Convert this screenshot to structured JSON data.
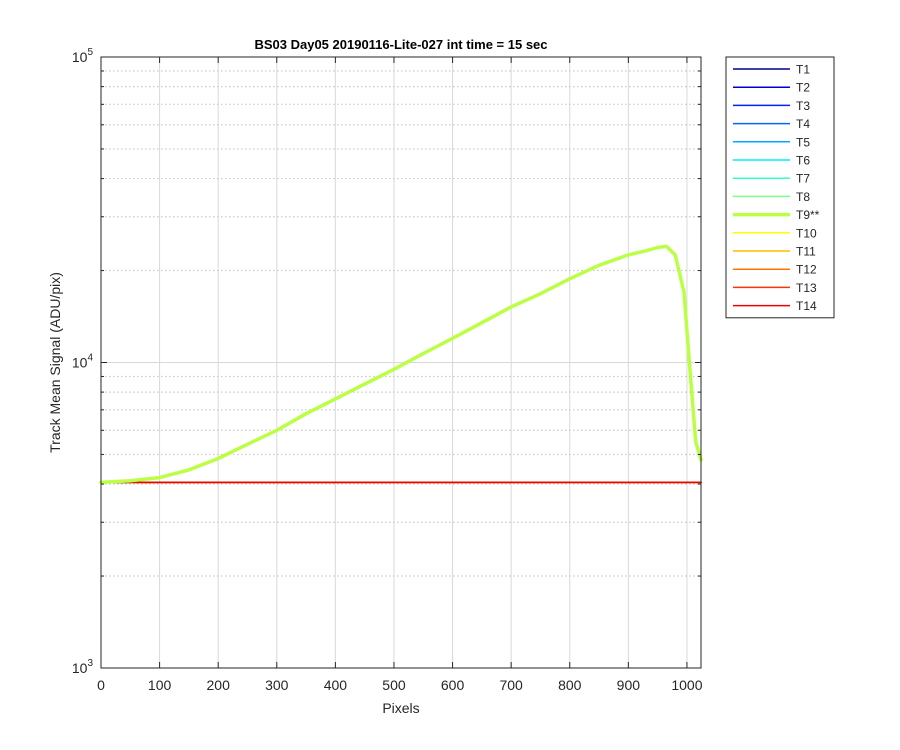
{
  "chart_data": {
    "type": "line",
    "title": "BS03 Day05 20190116-Lite-027 int time = 15 sec",
    "xlabel": "Pixels",
    "ylabel": "Track Mean Signal (ADU/pix)",
    "xlim": [
      0,
      1024
    ],
    "ylim": [
      1000,
      100000
    ],
    "yscale": "log",
    "grid": true,
    "legend_position": "outside-right",
    "x_ticks": [
      0,
      100,
      200,
      300,
      400,
      500,
      600,
      700,
      800,
      900,
      1000
    ],
    "x_tick_labels": [
      "0",
      "100",
      "200",
      "300",
      "400",
      "500",
      "600",
      "700",
      "800",
      "900",
      "1000"
    ],
    "y_ticks": [
      1000,
      10000,
      100000
    ],
    "y_tick_labels": [
      {
        "base": "10",
        "exp": "3"
      },
      {
        "base": "10",
        "exp": "4"
      },
      {
        "base": "10",
        "exp": "5"
      }
    ],
    "series": [
      {
        "name": "T1",
        "color": "#00008f",
        "bold": false,
        "x": [
          0,
          1024
        ],
        "y": [
          4050,
          4050
        ]
      },
      {
        "name": "T2",
        "color": "#0000d6",
        "bold": false,
        "x": [
          0,
          1024
        ],
        "y": [
          4050,
          4050
        ]
      },
      {
        "name": "T3",
        "color": "#0020ff",
        "bold": false,
        "x": [
          0,
          1024
        ],
        "y": [
          4050,
          4050
        ]
      },
      {
        "name": "T4",
        "color": "#0064ff",
        "bold": false,
        "x": [
          0,
          1024
        ],
        "y": [
          4050,
          4050
        ]
      },
      {
        "name": "T5",
        "color": "#00a8ff",
        "bold": false,
        "x": [
          0,
          1024
        ],
        "y": [
          4050,
          4050
        ]
      },
      {
        "name": "T6",
        "color": "#00ecff",
        "bold": false,
        "x": [
          0,
          1024
        ],
        "y": [
          4050,
          4050
        ]
      },
      {
        "name": "T7",
        "color": "#33ffcc",
        "bold": false,
        "x": [
          0,
          1024
        ],
        "y": [
          4050,
          4050
        ]
      },
      {
        "name": "T8",
        "color": "#77ff88",
        "bold": false,
        "x": [
          0,
          1024
        ],
        "y": [
          4050,
          4050
        ]
      },
      {
        "name": "T9**",
        "color": "#bbff44",
        "bold": true,
        "x": [
          0,
          50,
          100,
          150,
          200,
          250,
          300,
          350,
          400,
          450,
          500,
          550,
          600,
          650,
          700,
          750,
          800,
          850,
          900,
          930,
          950,
          965,
          980,
          995,
          1005,
          1015,
          1024
        ],
        "y": [
          4050,
          4100,
          4200,
          4450,
          4850,
          5400,
          6000,
          6800,
          7600,
          8500,
          9500,
          10700,
          12000,
          13500,
          15200,
          16800,
          18800,
          20800,
          22500,
          23200,
          23800,
          24000,
          22500,
          17000,
          9500,
          5500,
          4800
        ]
      },
      {
        "name": "T10",
        "color": "#ffff00",
        "bold": false,
        "x": [
          0,
          1024
        ],
        "y": [
          4050,
          4050
        ]
      },
      {
        "name": "T11",
        "color": "#ffbb00",
        "bold": false,
        "x": [
          0,
          1024
        ],
        "y": [
          4050,
          4050
        ]
      },
      {
        "name": "T12",
        "color": "#ff7700",
        "bold": false,
        "x": [
          0,
          1024
        ],
        "y": [
          4050,
          4050
        ]
      },
      {
        "name": "T13",
        "color": "#ff3300",
        "bold": false,
        "x": [
          0,
          1024
        ],
        "y": [
          4050,
          4050
        ]
      },
      {
        "name": "T14",
        "color": "#ee0000",
        "bold": false,
        "x": [
          0,
          1024
        ],
        "y": [
          4050,
          4050
        ]
      }
    ]
  }
}
